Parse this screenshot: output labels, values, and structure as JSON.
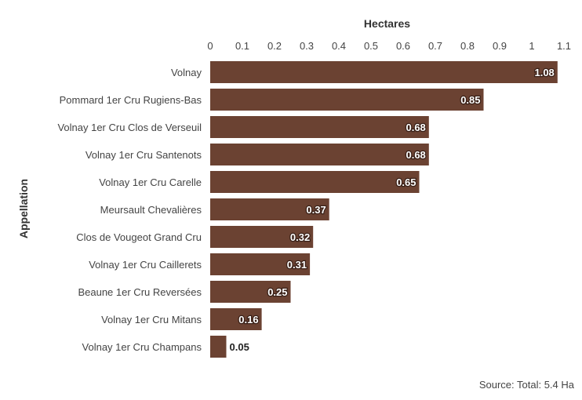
{
  "chart_data": {
    "type": "bar",
    "orientation": "horizontal",
    "categories": [
      "Volnay",
      "Pommard 1er Cru Rugiens-Bas",
      "Volnay 1er Cru Clos de Verseuil",
      "Volnay 1er Cru Santenots",
      "Volnay 1er Cru Carelle",
      "Meursault Chevalières",
      "Clos de Vougeot Grand Cru",
      "Volnay 1er Cru Caillerets",
      "Beaune 1er Cru Reversées",
      "Volnay 1er Cru Mitans",
      "Volnay 1er Cru Champans"
    ],
    "values": [
      1.08,
      0.85,
      0.68,
      0.68,
      0.65,
      0.37,
      0.32,
      0.31,
      0.25,
      0.16,
      0.05
    ],
    "value_labels": [
      "1.08",
      "0.85",
      "0.68",
      "0.68",
      "0.65",
      "0.37",
      "0.32",
      "0.31",
      "0.25",
      "0.16",
      "0.05"
    ],
    "xlabel": "Hectares",
    "ylabel": "Appellation",
    "xlim": [
      0,
      1.1
    ],
    "xticks": [
      "0",
      "0.1",
      "0.2",
      "0.3",
      "0.4",
      "0.5",
      "0.6",
      "0.7",
      "0.8",
      "0.9",
      "1",
      "1.1"
    ],
    "grid": false,
    "source": "Source: Total: 5.4 Ha",
    "colors": {
      "bar": "#6b4232",
      "label_inside": "#ffffff",
      "label_outside": "#222222"
    }
  }
}
